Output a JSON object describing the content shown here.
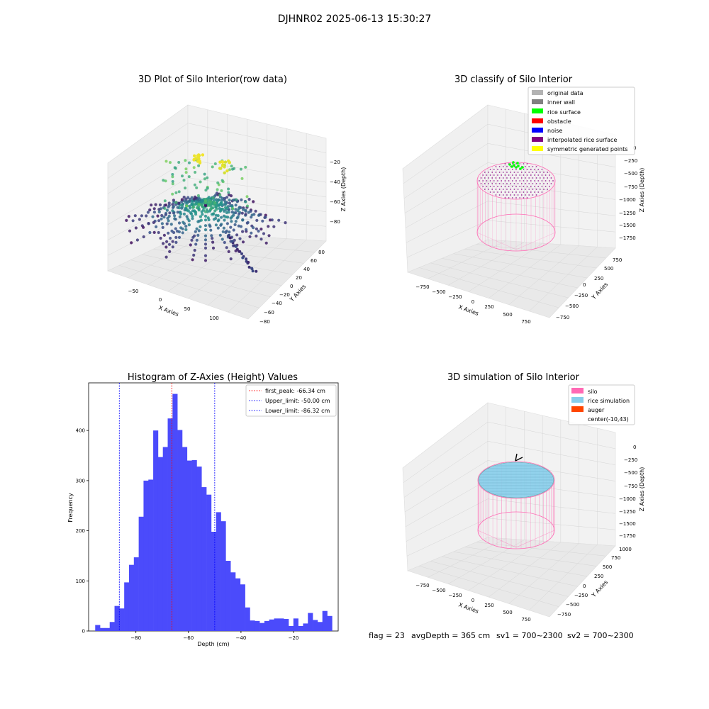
{
  "suptitle": "DJHNR02 2025-06-13 15:30:27",
  "footer": {
    "flag": "flag = 23",
    "avg_depth": "avgDepth = 365 cm",
    "sv1": "sv1 = 700~2300",
    "sv2": "sv2 = 700~2300"
  },
  "colors": {
    "viridis_low": "#440154",
    "viridis_mid": "#21918c",
    "viridis_high": "#fde725",
    "histogram_bar": "#4b4bfb",
    "silo": "#ff69b4",
    "rice_simulation": "#87ceeb",
    "auger": "#ff4500"
  },
  "chart_data": [
    {
      "type": "scatter3d",
      "title": "3D Plot of Silo Interior(row data)",
      "xlabel": "X Axies",
      "ylabel": "Y Axies",
      "zlabel": "Z Axies (Depth)",
      "xticks": [
        "−50",
        "0",
        "50",
        "100"
      ],
      "yticks": [
        "−80",
        "−60",
        "−40",
        "−20",
        "0",
        "20",
        "40",
        "60",
        "80"
      ],
      "zticks": [
        "−20",
        "−40",
        "−60",
        "−80"
      ],
      "colormap": "viridis"
    },
    {
      "type": "scatter3d",
      "title": "3D classify of Silo Interior",
      "xlabel": "X Axies",
      "ylabel": "Y Axies",
      "zlabel": "Z Axies (Depth)",
      "xticks": [
        "−750",
        "−500",
        "−250",
        "0",
        "250",
        "500",
        "750"
      ],
      "yticks": [
        "−750",
        "−500",
        "−250",
        "0",
        "250",
        "500",
        "750"
      ],
      "zticks": [
        "0",
        "−250",
        "−500",
        "−750",
        "−1000",
        "−1250",
        "−1500",
        "−1750"
      ],
      "legend_position": "top-right",
      "legend": [
        {
          "label": "original data",
          "color": "#b3b3b3"
        },
        {
          "label": "inner wall",
          "color": "#808080"
        },
        {
          "label": "rice surface",
          "color": "#00ff00"
        },
        {
          "label": "obstacle",
          "color": "#ff0000"
        },
        {
          "label": "noise",
          "color": "#0000ff"
        },
        {
          "label": "interpolated rice surface",
          "color": "#800080"
        },
        {
          "label": "symmetric generated points",
          "color": "#ffff00"
        }
      ]
    },
    {
      "type": "bar",
      "title": "Histogram of Z-Axies (Height) Values",
      "xlabel": "Depth (cm)",
      "ylabel": "Frequency",
      "xlim": [
        -98,
        -3
      ],
      "ylim": [
        0,
        495
      ],
      "xticks": [
        -80,
        -60,
        -40,
        -20
      ],
      "yticks": [
        0,
        100,
        200,
        300,
        400
      ],
      "bin_start": -95.5,
      "bin_width": 1.84,
      "values": [
        12,
        6,
        6,
        18,
        50,
        45,
        97,
        132,
        147,
        228,
        300,
        302,
        400,
        347,
        367,
        424,
        473,
        401,
        367,
        340,
        341,
        328,
        287,
        272,
        198,
        237,
        219,
        140,
        117,
        105,
        93,
        47,
        21,
        20,
        16,
        20,
        23,
        25,
        25,
        24,
        10,
        25,
        10,
        15,
        36,
        22,
        18,
        40,
        30
      ],
      "lines": [
        {
          "label": "first_peak: -66.34 cm",
          "x": -66.34,
          "color": "#ff0000"
        },
        {
          "label": "Upper_limit: -50.00 cm",
          "x": -50.0,
          "color": "#0000ff"
        },
        {
          "label": "Lower_limit: -86.32 cm",
          "x": -86.32,
          "color": "#0000ff"
        }
      ],
      "legend_position": "top-right"
    },
    {
      "type": "surface3d",
      "title": "3D simulation of Silo Interior",
      "xlabel": "X Axies",
      "ylabel": "Y Axies",
      "zlabel": "Z Axies (Depth)",
      "xticks": [
        "−750",
        "−500",
        "−250",
        "0",
        "250",
        "500",
        "750"
      ],
      "yticks": [
        "−750",
        "−500",
        "−250",
        "0",
        "250",
        "500",
        "750",
        "1000"
      ],
      "zticks": [
        "0",
        "−250",
        "−500",
        "−750",
        "−1000",
        "−1250",
        "−1500",
        "−1750"
      ],
      "legend_position": "top-right",
      "legend": [
        {
          "label": "silo",
          "color": "#ff69b4"
        },
        {
          "label": "rice simulation",
          "color": "#87ceeb"
        },
        {
          "label": "auger",
          "color": "#ff4500"
        },
        {
          "label": "center(-10,43)",
          "color": ""
        }
      ]
    }
  ]
}
